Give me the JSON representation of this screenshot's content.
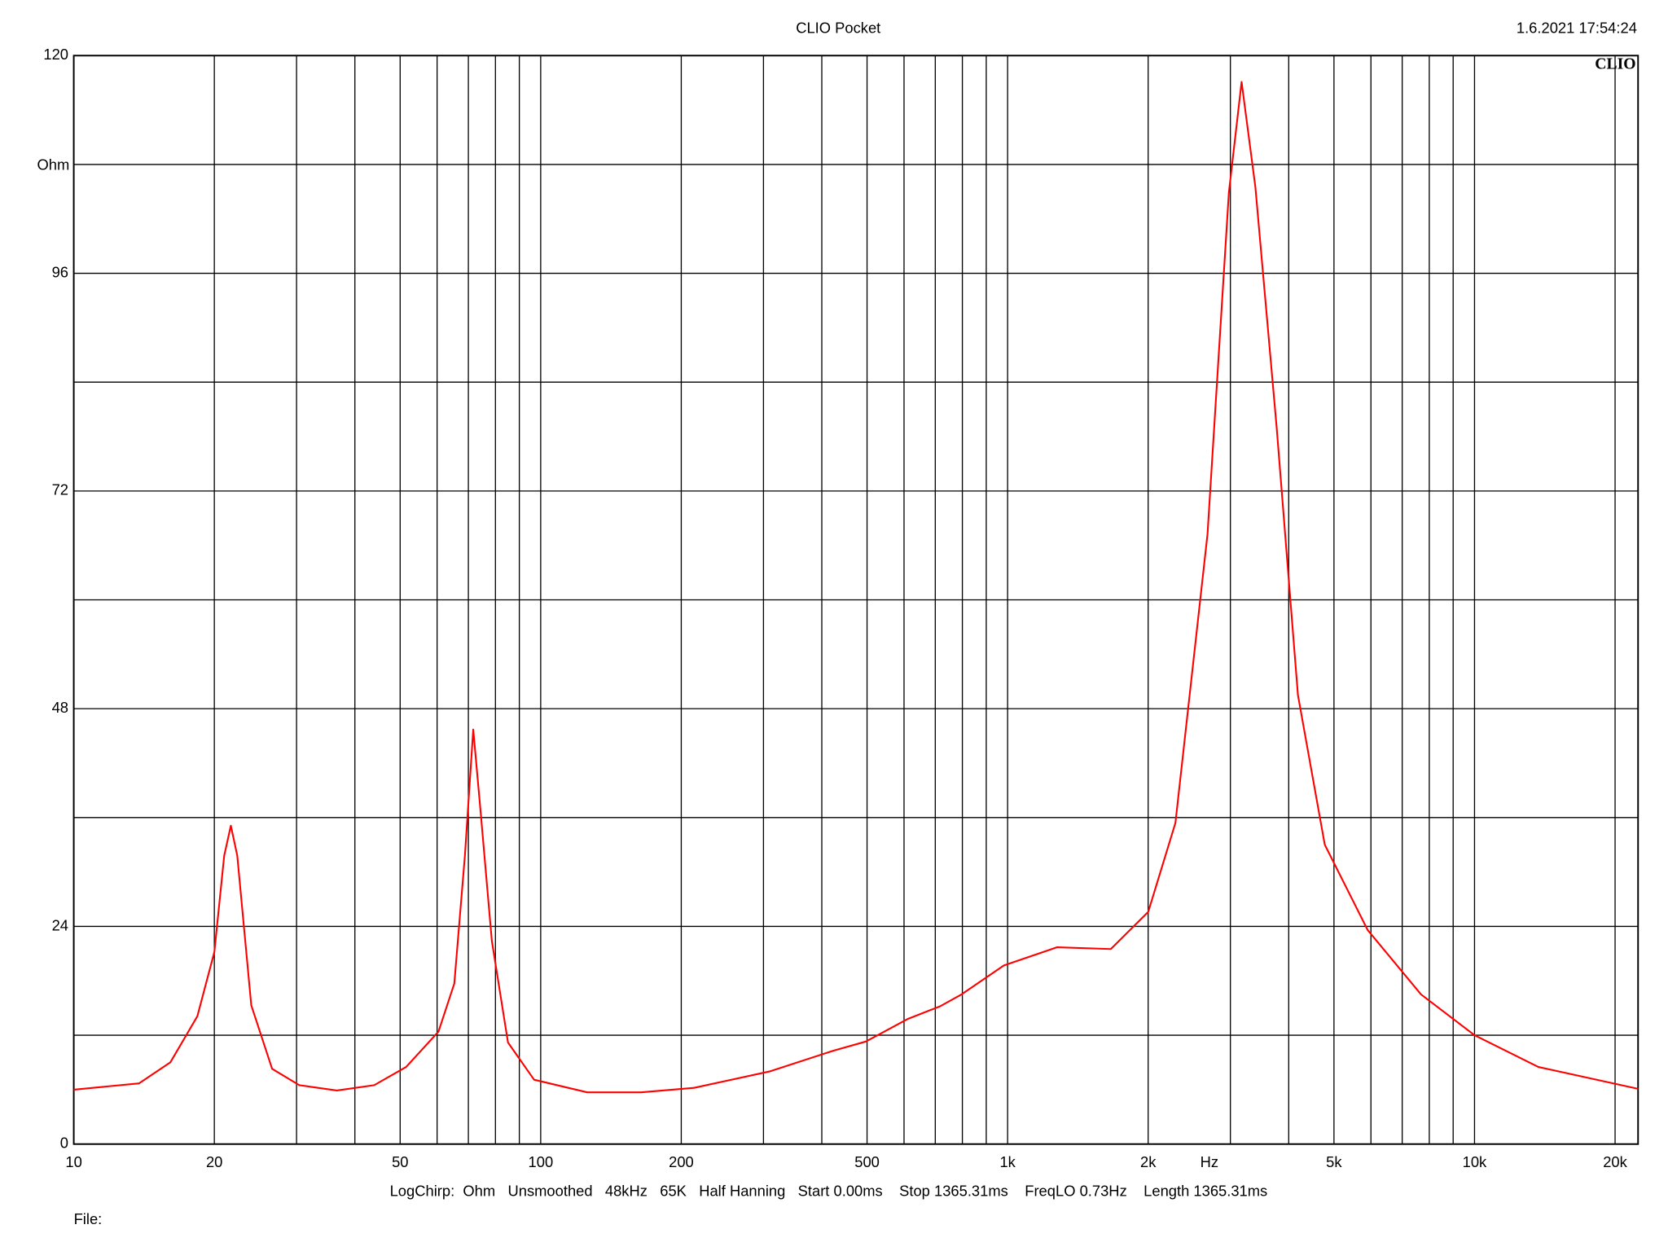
{
  "chart_data": {
    "type": "line",
    "title": "CLIO Pocket",
    "timestamp": "1.6.2021 17:54:24",
    "logo": "CLIO",
    "xlabel": "Hz",
    "ylabel": "Ohm",
    "settings": "LogChirp:  Ohm   Unsmoothed   48kHz   65K   Half Hanning   Start 0.00ms    Stop 1365.31ms    FreqLO 0.73Hz    Length 1365.31ms",
    "file_label": "File:",
    "xlog": true,
    "grid": true,
    "color": "#ff0000",
    "xlim": [
      10,
      22400
    ],
    "ylim": [
      0,
      120
    ],
    "xticks": [
      10,
      20,
      50,
      100,
      200,
      500,
      {
        "value": 1000,
        "label": "1k"
      },
      {
        "value": 2000,
        "label": "2k"
      },
      {
        "value": 5000,
        "label": "5k"
      },
      {
        "value": 10000,
        "label": "10k"
      },
      {
        "value": 20000,
        "label": "20k"
      }
    ],
    "xminor": [
      30,
      40,
      60,
      70,
      80,
      90,
      300,
      400,
      600,
      700,
      800,
      900,
      3000,
      4000,
      6000,
      7000,
      8000,
      9000
    ],
    "yticks": [
      0,
      24,
      48,
      72,
      96,
      120
    ],
    "yminor": [
      12,
      36,
      60,
      84,
      108
    ],
    "x": [
      10,
      13.8,
      16.1,
      18.4,
      20,
      21,
      21.7,
      22.4,
      24,
      26.6,
      30.4,
      36.6,
      44,
      51.5,
      60.4,
      65.3,
      68.8,
      71.7,
      74.4,
      78.6,
      85.1,
      96.8,
      125.8,
      164,
      213,
      309,
      424,
      497,
      612,
      717,
      797,
      982,
      1277,
      1664,
      2001,
      2288,
      2679,
      2977,
      3171,
      3394,
      3770,
      4187,
      4778,
      5904,
      7680,
      10000,
      13700,
      22400
    ],
    "values": [
      6.0,
      6.7,
      9.0,
      14.1,
      21.2,
      31.8,
      35.1,
      31.8,
      15.3,
      8.3,
      6.5,
      5.9,
      6.5,
      8.5,
      12.4,
      17.7,
      31.8,
      45.7,
      36.5,
      22.4,
      11.2,
      7.1,
      5.7,
      5.7,
      6.2,
      8.0,
      10.3,
      11.3,
      13.8,
      15.2,
      16.5,
      19.7,
      21.7,
      21.5,
      25.6,
      35.4,
      67.2,
      104.9,
      117.1,
      105.5,
      79.0,
      49.5,
      33.0,
      23.6,
      16.5,
      12.0,
      8.5,
      6.1
    ]
  }
}
